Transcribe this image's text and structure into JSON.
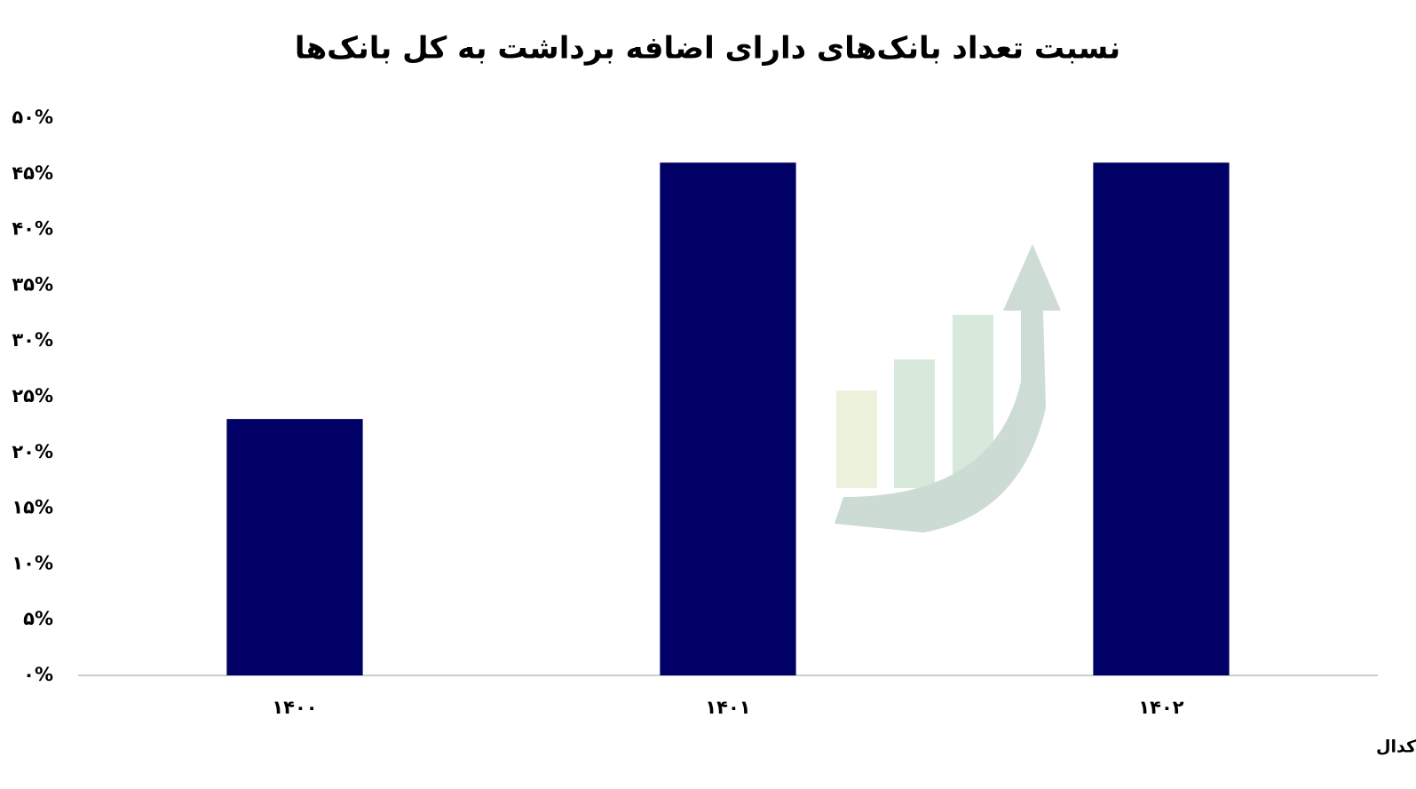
{
  "chart_data": {
    "type": "bar",
    "title": "نسبت تعداد بانک‌های دارای اضافه برداشت به کل بانک‌ها",
    "categories": [
      "۱۴۰۰",
      "۱۴۰۱",
      "۱۴۰۲"
    ],
    "values": [
      23,
      46,
      46
    ],
    "color": "#000066",
    "ylim": [
      0,
      50
    ],
    "yticks": [
      {
        "value": 0,
        "label": "۰%"
      },
      {
        "value": 5,
        "label": "۵%"
      },
      {
        "value": 10,
        "label": "۱۰%"
      },
      {
        "value": 15,
        "label": "۱۵%"
      },
      {
        "value": 20,
        "label": "۲۰%"
      },
      {
        "value": 25,
        "label": "۲۵%"
      },
      {
        "value": 30,
        "label": "۳۰%"
      },
      {
        "value": 35,
        "label": "۳۵%"
      },
      {
        "value": 40,
        "label": "۴۰%"
      },
      {
        "value": 45,
        "label": "۴۵%"
      },
      {
        "value": 50,
        "label": "۵۰%"
      }
    ],
    "grid": false,
    "source": "ماخذ: صورت‌های مالی حسابرسی شده در کدال"
  }
}
